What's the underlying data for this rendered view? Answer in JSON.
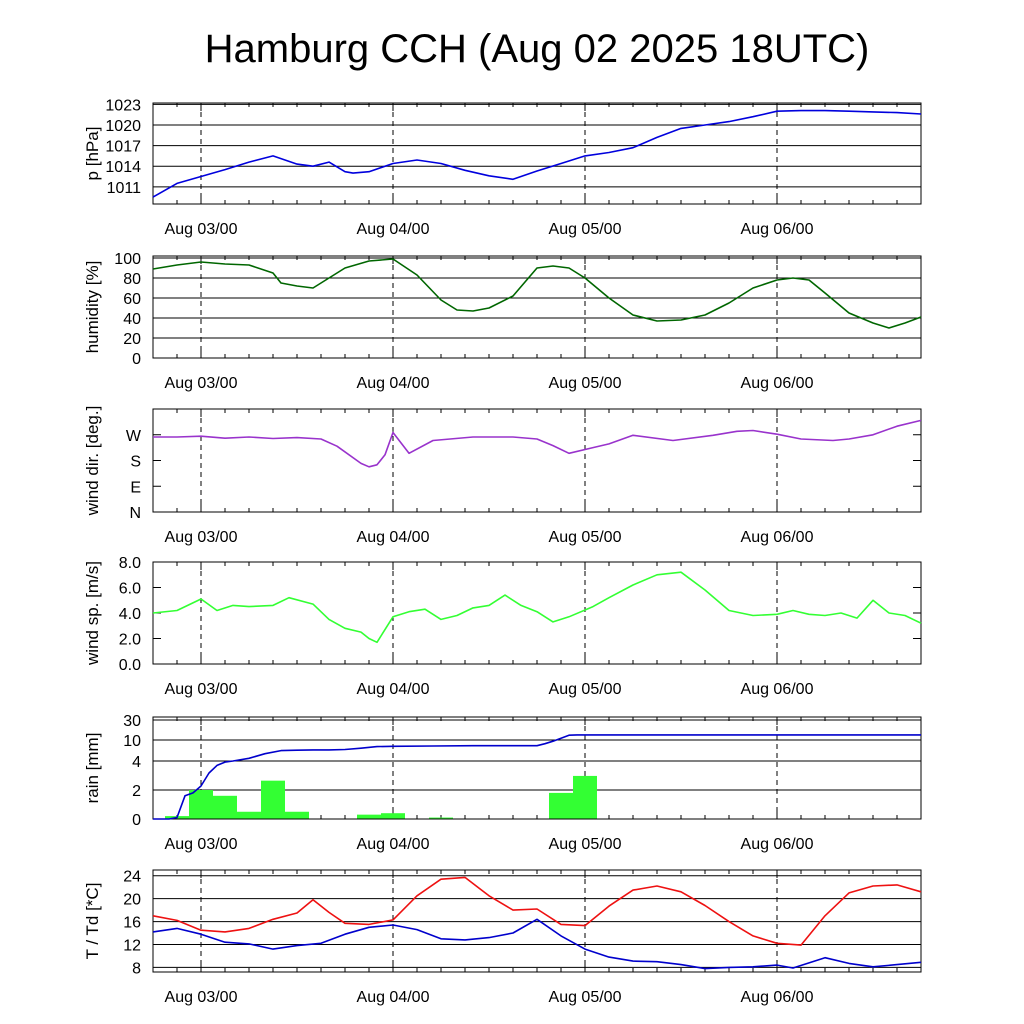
{
  "chart_data": {
    "title": "Hamburg CCH (Aug 02 2025 18UTC)",
    "x_time_range_hours_from_Aug02_18UTC": [
      0,
      96
    ],
    "x_tick_labels": [
      "Aug 03/00",
      "Aug 04/00",
      "Aug 05/00",
      "Aug 06/00"
    ],
    "panels": [
      {
        "id": "pressure",
        "type": "line",
        "ylabel": "p [hPa]",
        "ylim": [
          1008.5,
          1023.2
        ],
        "yticks": [
          1023,
          1020,
          1017,
          1014,
          1011
        ],
        "ytick_labels": [
          "1023",
          "1020",
          "1017",
          "1014",
          "1011"
        ],
        "grid": true,
        "series": [
          {
            "color": "#0000dd",
            "x": [
              0,
              3,
              6,
              9,
              12,
              15,
              18,
              20,
              22,
              24,
              25,
              27,
              30,
              33,
              36,
              39,
              42,
              45,
              48,
              51,
              54,
              57,
              60,
              63,
              66,
              69,
              72,
              75,
              78,
              81,
              84,
              87,
              90,
              93,
              96
            ],
            "y": [
              1009.5,
              1011.5,
              1012.5,
              1013.5,
              1014.6,
              1015.5,
              1014.3,
              1014.0,
              1014.6,
              1013.2,
              1013.0,
              1013.2,
              1014.4,
              1014.9,
              1014.4,
              1013.4,
              1012.6,
              1012.1,
              1013.3,
              1014.4,
              1015.5,
              1016.0,
              1016.7,
              1018.2,
              1019.5,
              1020.0,
              1020.5,
              1021.2,
              1022.0,
              1022.1,
              1022.1,
              1022.0,
              1021.9,
              1021.8,
              1021.6
            ]
          }
        ]
      },
      {
        "id": "humidity",
        "type": "line",
        "ylabel": "humidity [%]",
        "ylim": [
          0,
          102
        ],
        "yticks": [
          100,
          80,
          60,
          40,
          20,
          0
        ],
        "ytick_labels": [
          "100",
          "80",
          "60",
          "40",
          "20",
          "0"
        ],
        "grid": true,
        "series": [
          {
            "color": "#006600",
            "x": [
              0,
              3,
              6,
              9,
              12,
              15,
              16,
              18,
              20,
              23,
              24,
              27,
              30,
              33,
              36,
              38,
              40,
              42,
              45,
              48,
              50,
              52,
              54,
              57,
              60,
              63,
              66,
              69,
              72,
              75,
              78,
              80,
              82,
              84,
              87,
              90,
              92,
              94,
              96
            ],
            "y": [
              89,
              93,
              96,
              94,
              93,
              85,
              75,
              72,
              70,
              85,
              90,
              97,
              99,
              83,
              58,
              48,
              47,
              50,
              62,
              90,
              92,
              90,
              80,
              60,
              43,
              37,
              38,
              43,
              55,
              70,
              78,
              80,
              78,
              65,
              45,
              35,
              30,
              35,
              41
            ]
          }
        ]
      },
      {
        "id": "wind_direction",
        "type": "line",
        "ylabel": "wind dir. [deg.]",
        "ylim": [
          0,
          360
        ],
        "yticks": [
          270,
          180,
          90,
          0
        ],
        "ytick_labels": [
          "W",
          "S",
          "E",
          "N"
        ],
        "grid": false,
        "series": [
          {
            "color": "#9933cc",
            "x": [
              0,
              3,
              6,
              9,
              12,
              15,
              18,
              21,
              23,
              26,
              27,
              28,
              29,
              30,
              32,
              35,
              40,
              45,
              48,
              50,
              52,
              55,
              57,
              60,
              65,
              70,
              73,
              75,
              78,
              81,
              85,
              87,
              90,
              93,
              96
            ],
            "y": [
              262,
              262,
              265,
              258,
              262,
              257,
              260,
              255,
              230,
              170,
              158,
              165,
              200,
              278,
              205,
              250,
              262,
              262,
              255,
              232,
              205,
              225,
              238,
              268,
              250,
              268,
              282,
              285,
              272,
              255,
              250,
              255,
              270,
              300,
              320
            ]
          }
        ]
      },
      {
        "id": "wind_speed",
        "type": "line",
        "ylabel": "wind sp. [m/s]",
        "ylim": [
          0,
          8
        ],
        "yticks": [
          8,
          6,
          4,
          2,
          0
        ],
        "ytick_labels": [
          "8.0",
          "6.0",
          "4.0",
          "2.0",
          "0.0"
        ],
        "grid": false,
        "series": [
          {
            "color": "#33ff33",
            "x": [
              0,
              3,
              6,
              8,
              10,
              12,
              15,
              17,
              20,
              22,
              24,
              26,
              27,
              28,
              30,
              32,
              34,
              36,
              38,
              40,
              42,
              44,
              46,
              48,
              50,
              52,
              55,
              57,
              60,
              63,
              66,
              69,
              72,
              75,
              78,
              80,
              82,
              84,
              86,
              88,
              90,
              92,
              94,
              96
            ],
            "y": [
              4.0,
              4.2,
              5.1,
              4.2,
              4.6,
              4.5,
              4.6,
              5.2,
              4.7,
              3.5,
              2.8,
              2.5,
              2.0,
              1.7,
              3.7,
              4.1,
              4.3,
              3.5,
              3.8,
              4.4,
              4.6,
              5.4,
              4.6,
              4.1,
              3.3,
              3.7,
              4.5,
              5.2,
              6.2,
              7.0,
              7.2,
              5.8,
              4.2,
              3.8,
              3.9,
              4.2,
              3.9,
              3.8,
              4.0,
              3.6,
              5.0,
              4.0,
              3.8,
              3.2
            ]
          }
        ]
      },
      {
        "id": "rain",
        "type": "bar+line",
        "ylabel": "rain [mm]",
        "ylim": [
          0,
          30
        ],
        "scale": "nonlinear",
        "yticks": [
          30,
          10,
          4,
          2,
          0
        ],
        "ytick_labels": [
          "30",
          "10",
          "4",
          "2",
          "0"
        ],
        "grid": true,
        "bars": {
          "color": "#33ff33",
          "start_hours": [
            1.5,
            4.5,
            7.5,
            10.5,
            13.5,
            16.5,
            25.5,
            28.5,
            34.5,
            49.5,
            52.5
          ],
          "width_hours": 3,
          "values_mm": [
            0.2,
            2.0,
            1.6,
            0.5,
            2.5,
            0.5,
            0.3,
            0.4,
            0.1,
            1.8,
            2.8
          ]
        },
        "accumulated": {
          "color": "#0000cc",
          "x": [
            0,
            2,
            3,
            4,
            5,
            6,
            7,
            8,
            9,
            10,
            12,
            14,
            16,
            18,
            20,
            22,
            24,
            26,
            28,
            30,
            35,
            40,
            48,
            49,
            50,
            51,
            52,
            53,
            60,
            70,
            80,
            90,
            96
          ],
          "y": [
            0,
            0,
            0.1,
            1.6,
            1.8,
            2.2,
            3.0,
            3.6,
            3.9,
            4.0,
            4.5,
            5.5,
            6.3,
            6.4,
            6.5,
            6.5,
            6.6,
            7.0,
            7.5,
            7.6,
            7.7,
            7.8,
            7.8,
            8.5,
            9.5,
            11.0,
            13.0,
            13.2,
            13.2,
            13.2,
            13.2,
            13.2,
            13.2
          ]
        }
      },
      {
        "id": "temperature",
        "type": "line",
        "ylabel": "T / Td [*C]",
        "ylim": [
          7.2,
          25
        ],
        "yticks": [
          24,
          20,
          16,
          12,
          8
        ],
        "ytick_labels": [
          "24",
          "20",
          "16",
          "12",
          "8"
        ],
        "grid": true,
        "series": [
          {
            "color": "#ee1111",
            "x": [
              0,
              3,
              6,
              9,
              12,
              15,
              18,
              20,
              22,
              24,
              27,
              30,
              33,
              36,
              39,
              42,
              45,
              48,
              51,
              54,
              57,
              60,
              63,
              66,
              69,
              72,
              75,
              78,
              81,
              84,
              87,
              90,
              93,
              96
            ],
            "y": [
              17.0,
              16.2,
              14.5,
              14.2,
              14.8,
              16.4,
              17.5,
              19.8,
              17.6,
              15.7,
              15.5,
              16.3,
              20.5,
              23.4,
              23.7,
              20.5,
              18.0,
              18.2,
              15.5,
              15.3,
              18.7,
              21.5,
              22.2,
              21.2,
              18.8,
              16.0,
              13.5,
              12.2,
              11.9,
              17.0,
              21.0,
              22.2,
              22.4,
              21.2
            ]
          },
          {
            "color": "#0000cc",
            "x": [
              0,
              3,
              6,
              9,
              12,
              15,
              18,
              21,
              24,
              27,
              30,
              33,
              36,
              39,
              42,
              45,
              48,
              51,
              54,
              57,
              60,
              63,
              66,
              69,
              72,
              75,
              78,
              80,
              84,
              87,
              90,
              93,
              96
            ],
            "y": [
              14.2,
              14.8,
              13.8,
              12.4,
              12.1,
              11.2,
              11.8,
              12.2,
              13.8,
              15.0,
              15.4,
              14.6,
              13.0,
              12.8,
              13.2,
              14.0,
              16.4,
              13.5,
              11.2,
              9.8,
              9.1,
              9.0,
              8.5,
              7.8,
              8.0,
              8.1,
              8.4,
              7.9,
              9.7,
              8.7,
              8.1,
              8.5,
              8.9
            ]
          }
        ]
      }
    ]
  }
}
